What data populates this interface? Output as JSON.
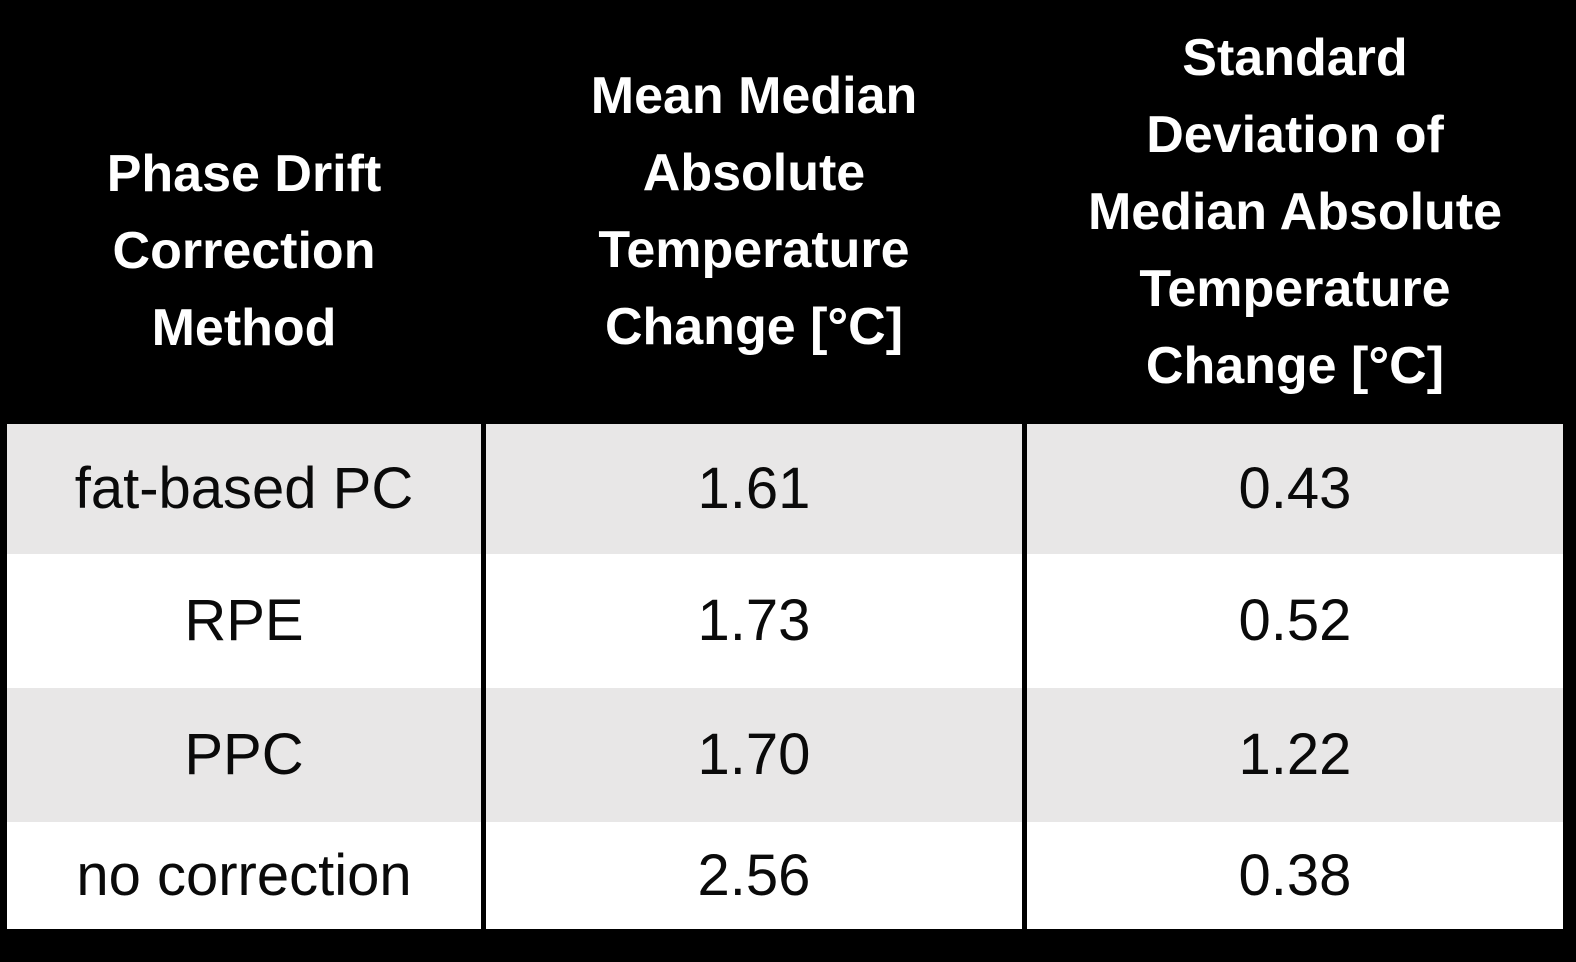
{
  "table": {
    "headers": [
      "Phase Drift\nCorrection\nMethod",
      "Mean Median\nAbsolute\nTemperature\nChange [°C]",
      "Standard\nDeviation of\nMedian Absolute\nTemperature\nChange [°C]"
    ],
    "rows": [
      {
        "method": "fat-based PC",
        "mean_change": "1.61",
        "std_change": "0.43"
      },
      {
        "method": "RPE",
        "mean_change": "1.73",
        "std_change": "0.52"
      },
      {
        "method": "PPC",
        "mean_change": "1.70",
        "std_change": "1.22"
      },
      {
        "method": "no correction",
        "mean_change": "2.56",
        "std_change": "0.38"
      }
    ]
  },
  "colors": {
    "canvas_background": "#000000",
    "header_background": "#000000",
    "header_text": "#ffffff",
    "row_shaded": "#e8e7e7",
    "row_plain": "#ffffff",
    "cell_text": "#0a0a0a",
    "grid_border": "#000000"
  },
  "chart_data": {
    "type": "table",
    "title": "",
    "columns": [
      "Phase Drift Correction Method",
      "Mean Median Absolute Temperature Change [°C]",
      "Standard Deviation of Median Absolute Temperature Change [°C]"
    ],
    "rows": [
      [
        "fat-based PC",
        1.61,
        0.43
      ],
      [
        "RPE",
        1.73,
        0.52
      ],
      [
        "PPC",
        1.7,
        1.22
      ],
      [
        "no correction",
        2.56,
        0.38
      ]
    ],
    "layout_hints": {
      "header_style": "black background, white bold text",
      "body_style": "alternating light-gray/white rows, black column separators",
      "grid": "vertical borders only"
    }
  }
}
